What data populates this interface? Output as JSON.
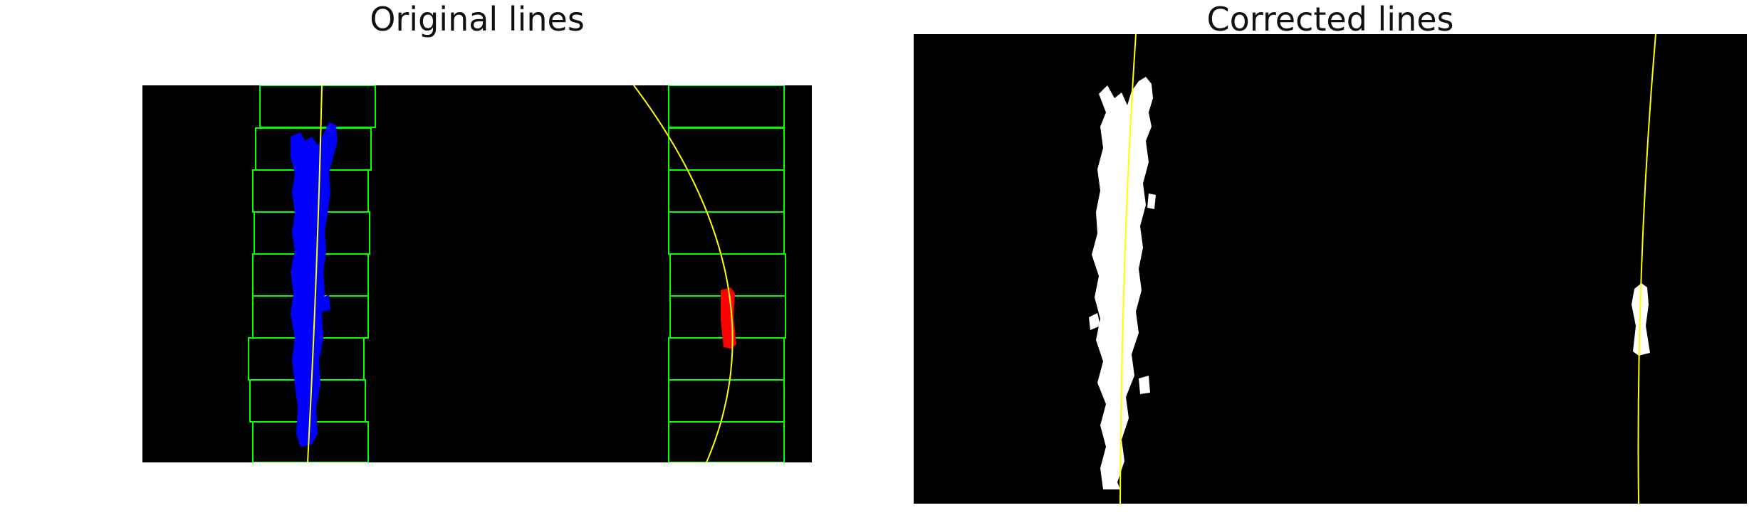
{
  "panels": {
    "left": {
      "title": "Original lines"
    },
    "right": {
      "title": "Corrected lines"
    }
  },
  "colors": {
    "background": "#000000",
    "search_window": "#00ff00",
    "left_lane_pixels": "#0000ff",
    "right_lane_pixels": "#ff0000",
    "fit_line": "#ffff00",
    "binary_pixels": "#ffffff"
  }
}
